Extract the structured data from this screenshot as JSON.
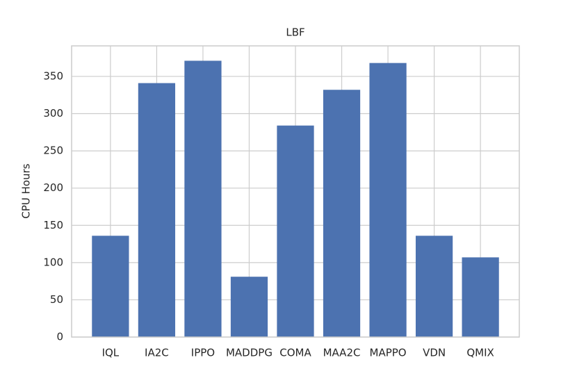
{
  "chart_data": {
    "type": "bar",
    "title": "LBF",
    "y_label": "CPU Hours",
    "categories": [
      "IQL",
      "IA2C",
      "IPPO",
      "MADDPG",
      "COMA",
      "MAA2C",
      "MAPPO",
      "VDN",
      "QMIX"
    ],
    "values": [
      136,
      341,
      371,
      81,
      284,
      332,
      368,
      136,
      107
    ],
    "color": "#4c72b0",
    "ylim": [
      0,
      391
    ],
    "yticks": [
      0,
      50,
      100,
      150,
      200,
      250,
      300,
      350
    ],
    "grid": true
  }
}
